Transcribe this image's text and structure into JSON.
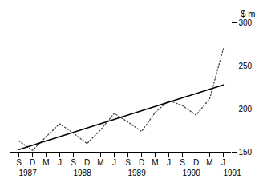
{
  "chart_data": {
    "type": "line",
    "y_label": "$ m",
    "categories": [
      "S",
      "D",
      "M",
      "J",
      "S",
      "D",
      "M",
      "J",
      "S",
      "D",
      "M",
      "J",
      "S",
      "D",
      "M",
      "J"
    ],
    "series": [
      {
        "color": "#444444",
        "line_style": "dotted",
        "values": [
          163,
          152,
          168,
          183,
          172,
          160,
          176,
          195,
          185,
          174,
          196,
          210,
          204,
          193,
          212,
          270
        ]
      },
      {
        "color": "#000000",
        "line_style": "solid",
        "values": [
          153,
          null,
          null,
          null,
          null,
          null,
          null,
          null,
          null,
          null,
          null,
          null,
          null,
          null,
          null,
          228
        ]
      }
    ],
    "annotations": [
      {
        "text": "1987",
        "x": 0
      },
      {
        "text": "1988",
        "x": 4
      },
      {
        "text": "1989",
        "x": 8
      },
      {
        "text": "1990",
        "x": 12
      },
      {
        "text": "1991",
        "x": 15
      }
    ],
    "ylim": [
      150,
      300
    ],
    "yticks": [
      150,
      200,
      250,
      300
    ],
    "grid": false
  }
}
